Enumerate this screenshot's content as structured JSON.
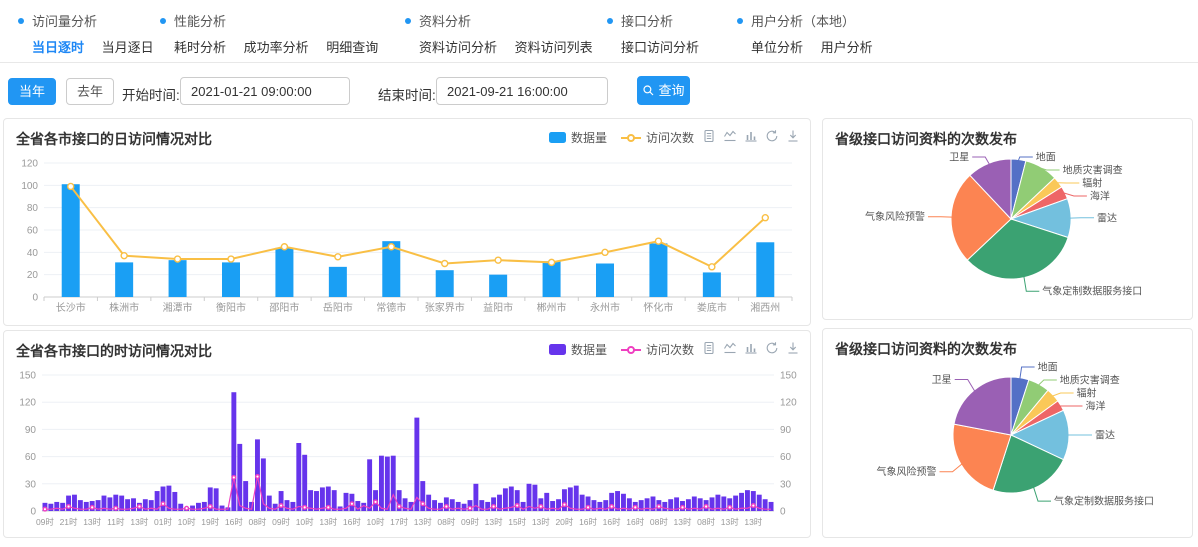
{
  "nav": {
    "groups": [
      {
        "title": "访问量分析",
        "items": [
          {
            "label": "当日逐时",
            "active": true
          },
          {
            "label": "当月逐日",
            "active": false
          }
        ]
      },
      {
        "title": "性能分析",
        "items": [
          {
            "label": "耗时分析",
            "active": false
          },
          {
            "label": "成功率分析",
            "active": false
          },
          {
            "label": "明细查询",
            "active": false
          }
        ]
      },
      {
        "title": "资料分析",
        "items": [
          {
            "label": "资料访问分析",
            "active": false
          },
          {
            "label": "资料访问列表",
            "active": false
          }
        ]
      },
      {
        "title": "接口分析",
        "items": [
          {
            "label": "接口访问分析",
            "active": false
          }
        ]
      },
      {
        "title": "用户分析（本地）",
        "items": [
          {
            "label": "单位分析",
            "active": false
          },
          {
            "label": "用户分析",
            "active": false
          }
        ]
      }
    ],
    "bullet_color": "#2196f3",
    "active_color": "#1f88f5"
  },
  "filters": {
    "this_year_label": "当年",
    "last_year_label": "去年",
    "start_label": "开始时间:",
    "start_value": "2021-01-21 09:00:00",
    "end_label": "结束时间:",
    "end_value": "2021-09-21 16:00:00",
    "search_label": "查询",
    "primary_color": "#2196f3"
  },
  "toolbox_icons": [
    "data-view",
    "line-chart-switch",
    "bar-chart-switch",
    "refresh",
    "download"
  ],
  "chart_data": [
    {
      "id": "daily",
      "type": "bar",
      "title": "全省各市接口的日访问情况对比",
      "legend_position": "top-right",
      "grid": true,
      "ylim": [
        0,
        120
      ],
      "ytick": 20,
      "legend": [
        {
          "label": "数据量",
          "marker": "bar",
          "color": "#1a9ff4"
        },
        {
          "label": "访问次数",
          "marker": "line",
          "color": "#f9bf45"
        }
      ],
      "categories": [
        "长沙市",
        "株洲市",
        "湘潭市",
        "衡阳市",
        "邵阳市",
        "岳阳市",
        "常德市",
        "张家界市",
        "益阳市",
        "郴州市",
        "永州市",
        "怀化市",
        "娄底市",
        "湘西州"
      ],
      "series": [
        {
          "name": "数据量",
          "type": "bar",
          "values": [
            101,
            31,
            33,
            31,
            44,
            27,
            50,
            24,
            20,
            32,
            30,
            48,
            22,
            49
          ]
        },
        {
          "name": "访问次数",
          "type": "line",
          "values": [
            99,
            37,
            34,
            34,
            45,
            36,
            45,
            30,
            33,
            31,
            40,
            50,
            27,
            71
          ]
        }
      ]
    },
    {
      "id": "hourly",
      "type": "bar",
      "title": "全省各市接口的时访问情况对比",
      "legend_position": "top-right",
      "grid": true,
      "dual_axis": true,
      "ylim": [
        0,
        150
      ],
      "ytick": 30,
      "label_every": 4,
      "legend": [
        {
          "label": "数据量",
          "marker": "bar",
          "color": "#6634ec"
        },
        {
          "label": "访问次数",
          "marker": "line",
          "color": "#ef3fc0"
        }
      ],
      "x_tick_labels": [
        "09时",
        "21时",
        "13时",
        "11时",
        "13时",
        "01时",
        "10时",
        "19时",
        "16时",
        "08时",
        "09时",
        "10时",
        "13时",
        "16时",
        "10时",
        "17时",
        "13时",
        "08时",
        "09时",
        "13时",
        "15时",
        "13时",
        "20时",
        "16时",
        "16时",
        "16时",
        "08时",
        "13时",
        "08时",
        "13时",
        "13时"
      ],
      "series": [
        {
          "name": "数据量",
          "type": "bar",
          "values": [
            9,
            8,
            10,
            9,
            17,
            18,
            12,
            10,
            11,
            12,
            17,
            15,
            18,
            17,
            13,
            14,
            9,
            13,
            12,
            22,
            27,
            28,
            21,
            8,
            4,
            6,
            9,
            10,
            26,
            25,
            6,
            4,
            131,
            74,
            33,
            10,
            79,
            58,
            17,
            8,
            22,
            12,
            10,
            75,
            62,
            23,
            22,
            26,
            27,
            23,
            5,
            20,
            19,
            11,
            9,
            57,
            23,
            61,
            60,
            61,
            23,
            14,
            10,
            103,
            33,
            18,
            12,
            9,
            15,
            13,
            10,
            8,
            12,
            30,
            12,
            10,
            15,
            18,
            25,
            27,
            23,
            10,
            30,
            29,
            14,
            20,
            11,
            13,
            24,
            26,
            28,
            18,
            16,
            12,
            10,
            12,
            20,
            22,
            19,
            14,
            10,
            12,
            14,
            16,
            12,
            10,
            13,
            15,
            11,
            13,
            16,
            14,
            12,
            15,
            18,
            16,
            14,
            17,
            20,
            23,
            22,
            18,
            13,
            10
          ]
        },
        {
          "name": "访问次数",
          "type": "line",
          "values": [
            2,
            2,
            3,
            2,
            5,
            3,
            2,
            2,
            4,
            2,
            3,
            2,
            3,
            2,
            2,
            3,
            5,
            2,
            3,
            2,
            8,
            3,
            2,
            2,
            3,
            2,
            2,
            3,
            5,
            2,
            2,
            2,
            37,
            6,
            3,
            2,
            38,
            8,
            3,
            2,
            6,
            3,
            2,
            5,
            4,
            3,
            2,
            3,
            4,
            2,
            2,
            3,
            8,
            2,
            6,
            3,
            10,
            3,
            2,
            18,
            5,
            3,
            2,
            15,
            8,
            3,
            2,
            2,
            5,
            2,
            3,
            2,
            3,
            6,
            2,
            2,
            5,
            2,
            3,
            4,
            6,
            2,
            5,
            3,
            5,
            2,
            3,
            2,
            7,
            3,
            2,
            2,
            4,
            2,
            3,
            2,
            5,
            2,
            3,
            2,
            4,
            2,
            3,
            2,
            5,
            3,
            2,
            2,
            4,
            2,
            3,
            2,
            5,
            2,
            3,
            2,
            4,
            2,
            3,
            3,
            6,
            3,
            2,
            2
          ]
        }
      ]
    },
    {
      "id": "pie1",
      "type": "pie",
      "title": "省级接口访问资料的次数发布",
      "slices": [
        {
          "label": "地面",
          "value": 4,
          "color": "#5470c6"
        },
        {
          "label": "地质灾害调查",
          "value": 9,
          "color": "#91cc75"
        },
        {
          "label": "辐射",
          "value": 3,
          "color": "#fac858"
        },
        {
          "label": "海洋",
          "value": 3.5,
          "color": "#ee6666"
        },
        {
          "label": "雷达",
          "value": 10.5,
          "color": "#73c0de"
        },
        {
          "label": "气象定制数据服务接口",
          "value": 33,
          "color": "#3ba272"
        },
        {
          "label": "气象风险预警",
          "value": 25,
          "color": "#fc8452"
        },
        {
          "label": "卫星",
          "value": 12,
          "color": "#9a60b4"
        }
      ]
    },
    {
      "id": "pie2",
      "type": "pie",
      "title": "省级接口访问资料的次数发布",
      "slices": [
        {
          "label": "地面",
          "value": 5,
          "color": "#5470c6"
        },
        {
          "label": "地质灾害调查",
          "value": 6,
          "color": "#91cc75"
        },
        {
          "label": "辐射",
          "value": 4,
          "color": "#fac858"
        },
        {
          "label": "海洋",
          "value": 3,
          "color": "#ee6666"
        },
        {
          "label": "雷达",
          "value": 14,
          "color": "#73c0de"
        },
        {
          "label": "气象定制数据服务接口",
          "value": 23,
          "color": "#3ba272"
        },
        {
          "label": "气象风险预警",
          "value": 23,
          "color": "#fc8452"
        },
        {
          "label": "卫星",
          "value": 22,
          "color": "#9a60b4"
        }
      ]
    }
  ]
}
